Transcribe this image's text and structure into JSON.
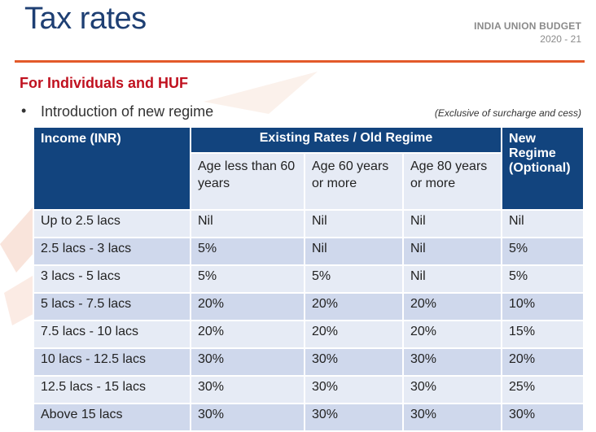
{
  "header": {
    "title": "Tax rates",
    "brand_line1": "INDIA UNION BUDGET",
    "brand_line2": "2020 - 21"
  },
  "section": {
    "subtitle": "For Individuals and HUF",
    "bullet": "Introduction of new regime",
    "note": "(Exclusive of surcharge and cess)"
  },
  "colors": {
    "title": "#1e3f73",
    "rule": "#e35a2a",
    "subtitle": "#c0111f",
    "header_bg": "#12447e",
    "row_light": "#e6ebf5",
    "row_dark": "#cfd8ec"
  },
  "table": {
    "income_header": "Income (INR)",
    "group_header": "Existing Rates / Old Regime",
    "sub_headers": [
      "Age less than 60 years",
      "Age 60 years or more",
      "Age 80 years or more"
    ],
    "new_header": "New Regime (Optional)",
    "rows": [
      [
        "Up to 2.5 lacs",
        "Nil",
        "Nil",
        "Nil",
        "Nil"
      ],
      [
        "2.5 lacs - 3 lacs",
        "5%",
        "Nil",
        "Nil",
        "5%"
      ],
      [
        "3 lacs - 5 lacs",
        "5%",
        "5%",
        "Nil",
        "5%"
      ],
      [
        "5 lacs - 7.5 lacs",
        "20%",
        "20%",
        "20%",
        "10%"
      ],
      [
        "7.5 lacs - 10 lacs",
        "20%",
        "20%",
        "20%",
        "15%"
      ],
      [
        "10 lacs - 12.5 lacs",
        "30%",
        "30%",
        "30%",
        "20%"
      ],
      [
        "12.5 lacs - 15 lacs",
        "30%",
        "30%",
        "30%",
        "25%"
      ],
      [
        "Above 15 lacs",
        "30%",
        "30%",
        "30%",
        "30%"
      ]
    ]
  }
}
